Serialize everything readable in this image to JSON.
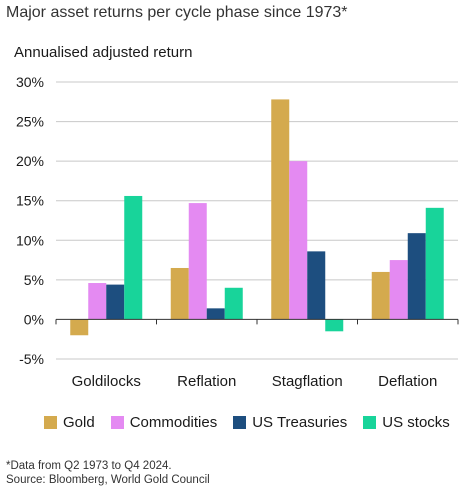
{
  "title": "Major asset returns per cycle phase since 1973*",
  "footnote": "*Data from Q2 1973 to Q4 2024.",
  "source": "Source: Bloomberg, World Gold Council",
  "chart_data": {
    "type": "bar",
    "ylabel": "Annualised adjusted return",
    "ylim": [
      -5,
      30
    ],
    "yticks": [
      -5,
      0,
      5,
      10,
      15,
      20,
      25,
      30
    ],
    "ytick_labels": [
      "-5%",
      "0%",
      "5%",
      "10%",
      "15%",
      "20%",
      "25%",
      "30%"
    ],
    "categories": [
      "Goldilocks",
      "Reflation",
      "Stagflation",
      "Deflation"
    ],
    "series": [
      {
        "name": "Gold",
        "color": "#D4AA4E",
        "values": [
          -2.0,
          6.5,
          27.8,
          6.0
        ]
      },
      {
        "name": "Commodities",
        "color": "#E48AF2",
        "values": [
          4.6,
          14.7,
          20.0,
          7.5
        ]
      },
      {
        "name": "US Treasuries",
        "color": "#1D4E7F",
        "values": [
          4.4,
          1.4,
          8.6,
          10.9
        ]
      },
      {
        "name": "US stocks",
        "color": "#18D49A",
        "values": [
          15.6,
          4.0,
          -1.5,
          14.1
        ]
      }
    ],
    "grid": "horizontal",
    "legend_position": "bottom"
  }
}
